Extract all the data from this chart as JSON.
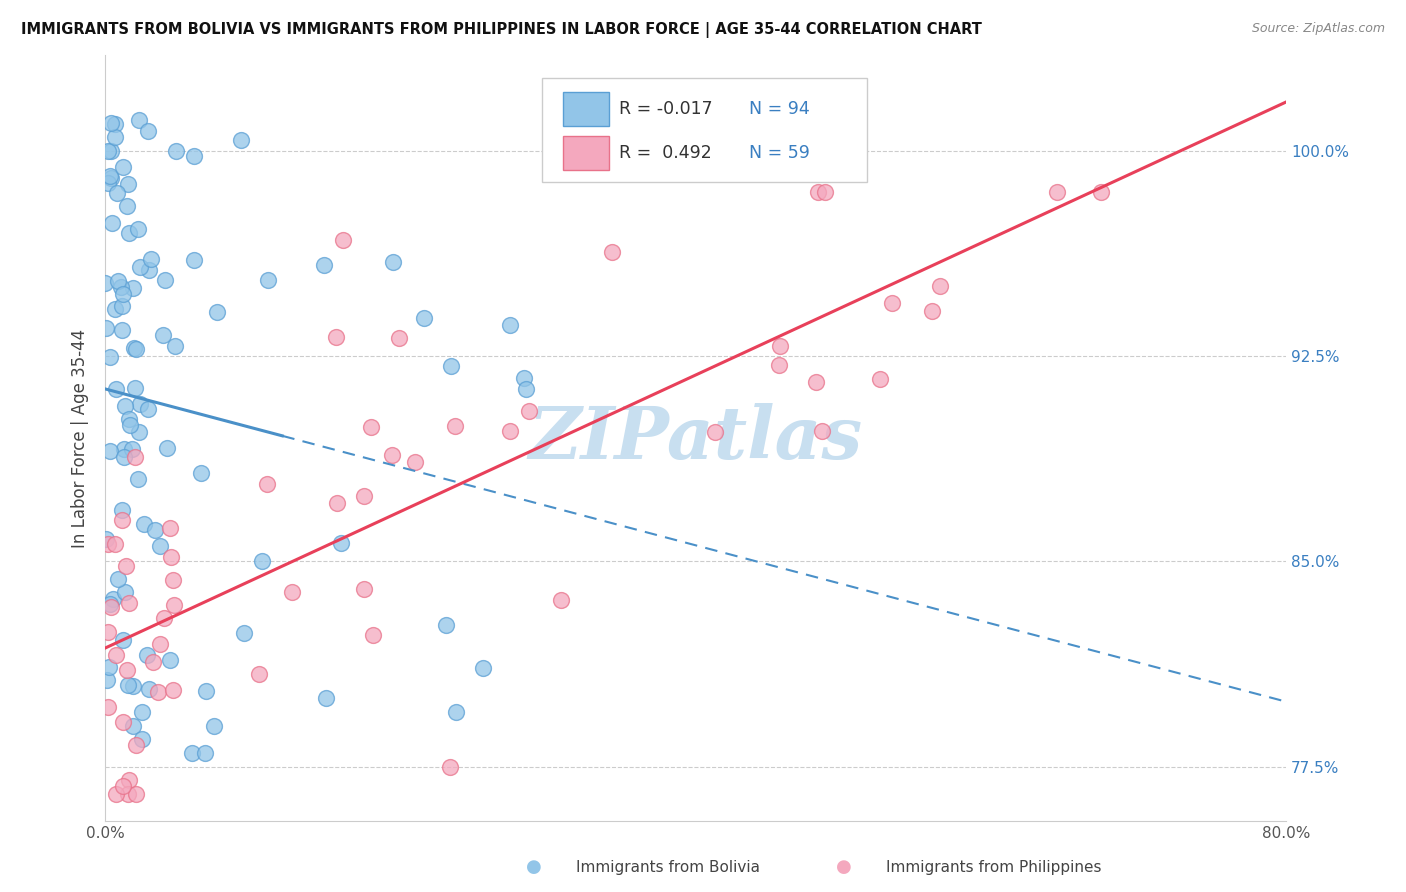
{
  "title": "IMMIGRANTS FROM BOLIVIA VS IMMIGRANTS FROM PHILIPPINES IN LABOR FORCE | AGE 35-44 CORRELATION CHART",
  "source_text": "Source: ZipAtlas.com",
  "ylabel": "In Labor Force | Age 35-44",
  "xlim": [
    0.0,
    0.8
  ],
  "ylim": [
    0.755,
    1.035
  ],
  "xticks": [
    0.0,
    0.2,
    0.4,
    0.6,
    0.8
  ],
  "xticklabels": [
    "0.0%",
    "",
    "",
    "",
    "80.0%"
  ],
  "yticks": [
    0.775,
    0.85,
    0.925,
    1.0
  ],
  "yticklabels": [
    "77.5%",
    "85.0%",
    "92.5%",
    "100.0%"
  ],
  "bolivia_R": "-0.017",
  "bolivia_N": "94",
  "philippines_R": "0.492",
  "philippines_N": "59",
  "bolivia_color": "#92c5e8",
  "philippines_color": "#f4a8be",
  "bolivia_edge_color": "#5a9fd4",
  "philippines_edge_color": "#e8728a",
  "bolivia_line_color": "#4a90c8",
  "philippines_line_color": "#e8405a",
  "watermark_color": "#c8dff0",
  "watermark_text": "ZIPatlas",
  "legend_R_color": "#333333",
  "legend_N_color": "#3a7fc1",
  "grid_color": "#cccccc",
  "tick_color": "#555555",
  "right_tick_color": "#3a7fc1"
}
